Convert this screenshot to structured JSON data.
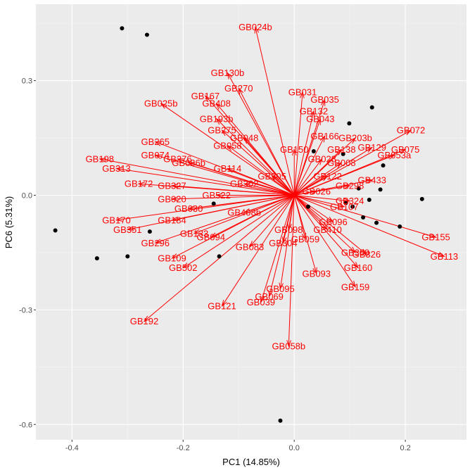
{
  "chart_data": {
    "type": "scatter",
    "subtype": "pca-biplot",
    "title": "",
    "xlabel": "PC1 (14.85%)",
    "ylabel": "PC6 (5.31%)",
    "xlim": [
      -0.465,
      0.31
    ],
    "ylim": [
      -0.64,
      0.5
    ],
    "x_ticks": [
      -0.4,
      -0.2,
      0.0,
      0.2
    ],
    "x_tick_labels": [
      "-0.4",
      "-0.2",
      "0.0",
      "0.2"
    ],
    "y_ticks": [
      -0.6,
      -0.3,
      0.0,
      0.3
    ],
    "y_tick_labels": [
      "-0.6",
      "-0.3",
      "0.0",
      "0.3"
    ],
    "grid": true,
    "colors": {
      "panel": "#ebebeb",
      "grid_major": "#ffffff",
      "grid_minor": "#f5f5f5",
      "points": "#000000",
      "arrows": "#ff0000"
    },
    "points": [
      {
        "x": -0.31,
        "y": 0.437
      },
      {
        "x": -0.265,
        "y": 0.42
      },
      {
        "x": 0.14,
        "y": 0.23
      },
      {
        "x": 0.099,
        "y": 0.188
      },
      {
        "x": 0.035,
        "y": 0.115
      },
      {
        "x": 0.088,
        "y": 0.108
      },
      {
        "x": 0.16,
        "y": 0.078
      },
      {
        "x": 0.116,
        "y": 0.018
      },
      {
        "x": 0.155,
        "y": 0.015
      },
      {
        "x": 0.23,
        "y": -0.01
      },
      {
        "x": 0.135,
        "y": -0.012
      },
      {
        "x": 0.093,
        "y": -0.02
      },
      {
        "x": -0.145,
        "y": -0.022
      },
      {
        "x": 0.025,
        "y": -0.03
      },
      {
        "x": 0.105,
        "y": -0.03
      },
      {
        "x": 0.124,
        "y": -0.058
      },
      {
        "x": 0.148,
        "y": -0.072
      },
      {
        "x": 0.19,
        "y": -0.082
      },
      {
        "x": -0.43,
        "y": -0.092
      },
      {
        "x": -0.26,
        "y": -0.095
      },
      {
        "x": -0.3,
        "y": -0.16
      },
      {
        "x": -0.355,
        "y": -0.165
      },
      {
        "x": -0.135,
        "y": -0.16
      },
      {
        "x": -0.025,
        "y": -0.59
      }
    ],
    "loadings": [
      {
        "label": "GB024b",
        "x": -0.07,
        "y": 0.44
      },
      {
        "label": "GB130b",
        "x": -0.12,
        "y": 0.32
      },
      {
        "label": "GB270",
        "x": -0.1,
        "y": 0.28
      },
      {
        "label": "GB167",
        "x": -0.16,
        "y": 0.26
      },
      {
        "label": "GB025b",
        "x": -0.24,
        "y": 0.24
      },
      {
        "label": "GB408",
        "x": -0.14,
        "y": 0.24
      },
      {
        "label": "GB193b",
        "x": -0.14,
        "y": 0.2
      },
      {
        "label": "GB031",
        "x": 0.015,
        "y": 0.27
      },
      {
        "label": "GB035",
        "x": 0.055,
        "y": 0.25
      },
      {
        "label": "GB132",
        "x": 0.035,
        "y": 0.22
      },
      {
        "label": "GB043",
        "x": 0.047,
        "y": 0.2
      },
      {
        "label": "GB275",
        "x": -0.13,
        "y": 0.17
      },
      {
        "label": "GB048",
        "x": -0.09,
        "y": 0.15
      },
      {
        "label": "GB058",
        "x": -0.12,
        "y": 0.13
      },
      {
        "label": "GB166",
        "x": 0.055,
        "y": 0.155
      },
      {
        "label": "GB203b",
        "x": 0.11,
        "y": 0.15
      },
      {
        "label": "GB072",
        "x": 0.21,
        "y": 0.17
      },
      {
        "label": "GB265",
        "x": -0.25,
        "y": 0.14
      },
      {
        "label": "GB074",
        "x": -0.25,
        "y": 0.105
      },
      {
        "label": "GB198",
        "x": -0.35,
        "y": 0.095
      },
      {
        "label": "GB313",
        "x": -0.32,
        "y": 0.07
      },
      {
        "label": "GB276",
        "x": -0.21,
        "y": 0.095
      },
      {
        "label": "GB086b",
        "x": -0.19,
        "y": 0.085
      },
      {
        "label": "GB150",
        "x": 0.0,
        "y": 0.12
      },
      {
        "label": "GB028",
        "x": 0.05,
        "y": 0.095
      },
      {
        "label": "GB114",
        "x": -0.12,
        "y": 0.07
      },
      {
        "label": "GB305",
        "x": -0.04,
        "y": 0.05
      },
      {
        "label": "GB138",
        "x": 0.085,
        "y": 0.12
      },
      {
        "label": "GB129",
        "x": 0.14,
        "y": 0.125
      },
      {
        "label": "GB075",
        "x": 0.2,
        "y": 0.12
      },
      {
        "label": "GB053a",
        "x": 0.18,
        "y": 0.105
      },
      {
        "label": "GB008",
        "x": 0.085,
        "y": 0.085
      },
      {
        "label": "GB122",
        "x": 0.06,
        "y": 0.05
      },
      {
        "label": "GB433",
        "x": 0.14,
        "y": 0.04
      },
      {
        "label": "GB298",
        "x": 0.1,
        "y": 0.025
      },
      {
        "label": "GB026",
        "x": 0.04,
        "y": 0.01
      },
      {
        "label": "GB324",
        "x": 0.1,
        "y": -0.015
      },
      {
        "label": "GB107",
        "x": 0.09,
        "y": -0.03
      },
      {
        "label": "GB172",
        "x": -0.28,
        "y": 0.03
      },
      {
        "label": "GB327",
        "x": -0.22,
        "y": 0.025
      },
      {
        "label": "GB522",
        "x": -0.14,
        "y": 0.0
      },
      {
        "label": "GB302",
        "x": -0.09,
        "y": 0.03
      },
      {
        "label": "GB020",
        "x": -0.22,
        "y": -0.01
      },
      {
        "label": "GB030",
        "x": -0.19,
        "y": -0.035
      },
      {
        "label": "GB408b",
        "x": -0.09,
        "y": -0.045
      },
      {
        "label": "GB170",
        "x": -0.32,
        "y": -0.065
      },
      {
        "label": "GB184",
        "x": -0.22,
        "y": -0.065
      },
      {
        "label": "GB351",
        "x": -0.3,
        "y": -0.09
      },
      {
        "label": "GB133",
        "x": -0.18,
        "y": -0.1
      },
      {
        "label": "GB094",
        "x": -0.15,
        "y": -0.11
      },
      {
        "label": "GB296",
        "x": -0.25,
        "y": -0.125
      },
      {
        "label": "GB083",
        "x": -0.08,
        "y": -0.135
      },
      {
        "label": "GB304",
        "x": -0.02,
        "y": -0.125
      },
      {
        "label": "GB059",
        "x": 0.02,
        "y": -0.115
      },
      {
        "label": "GB098",
        "x": -0.01,
        "y": -0.09
      },
      {
        "label": "GB410",
        "x": 0.06,
        "y": -0.09
      },
      {
        "label": "GB096",
        "x": 0.07,
        "y": -0.07
      },
      {
        "label": "GB109",
        "x": -0.22,
        "y": -0.165
      },
      {
        "label": "GB502",
        "x": -0.2,
        "y": -0.19
      },
      {
        "label": "GB155",
        "x": 0.255,
        "y": -0.11
      },
      {
        "label": "GB113",
        "x": 0.27,
        "y": -0.16
      },
      {
        "label": "GB326",
        "x": 0.13,
        "y": -0.155
      },
      {
        "label": "GB309",
        "x": 0.11,
        "y": -0.15
      },
      {
        "label": "GB160",
        "x": 0.115,
        "y": -0.19
      },
      {
        "label": "GB093",
        "x": 0.04,
        "y": -0.205
      },
      {
        "label": "GB159",
        "x": 0.11,
        "y": -0.24
      },
      {
        "label": "GB095",
        "x": -0.025,
        "y": -0.245
      },
      {
        "label": "GB069",
        "x": -0.045,
        "y": -0.265
      },
      {
        "label": "GB039",
        "x": -0.06,
        "y": -0.28
      },
      {
        "label": "GB121",
        "x": -0.13,
        "y": -0.29
      },
      {
        "label": "GB192",
        "x": -0.27,
        "y": -0.33
      },
      {
        "label": "GB058b",
        "x": -0.01,
        "y": -0.395
      }
    ]
  }
}
